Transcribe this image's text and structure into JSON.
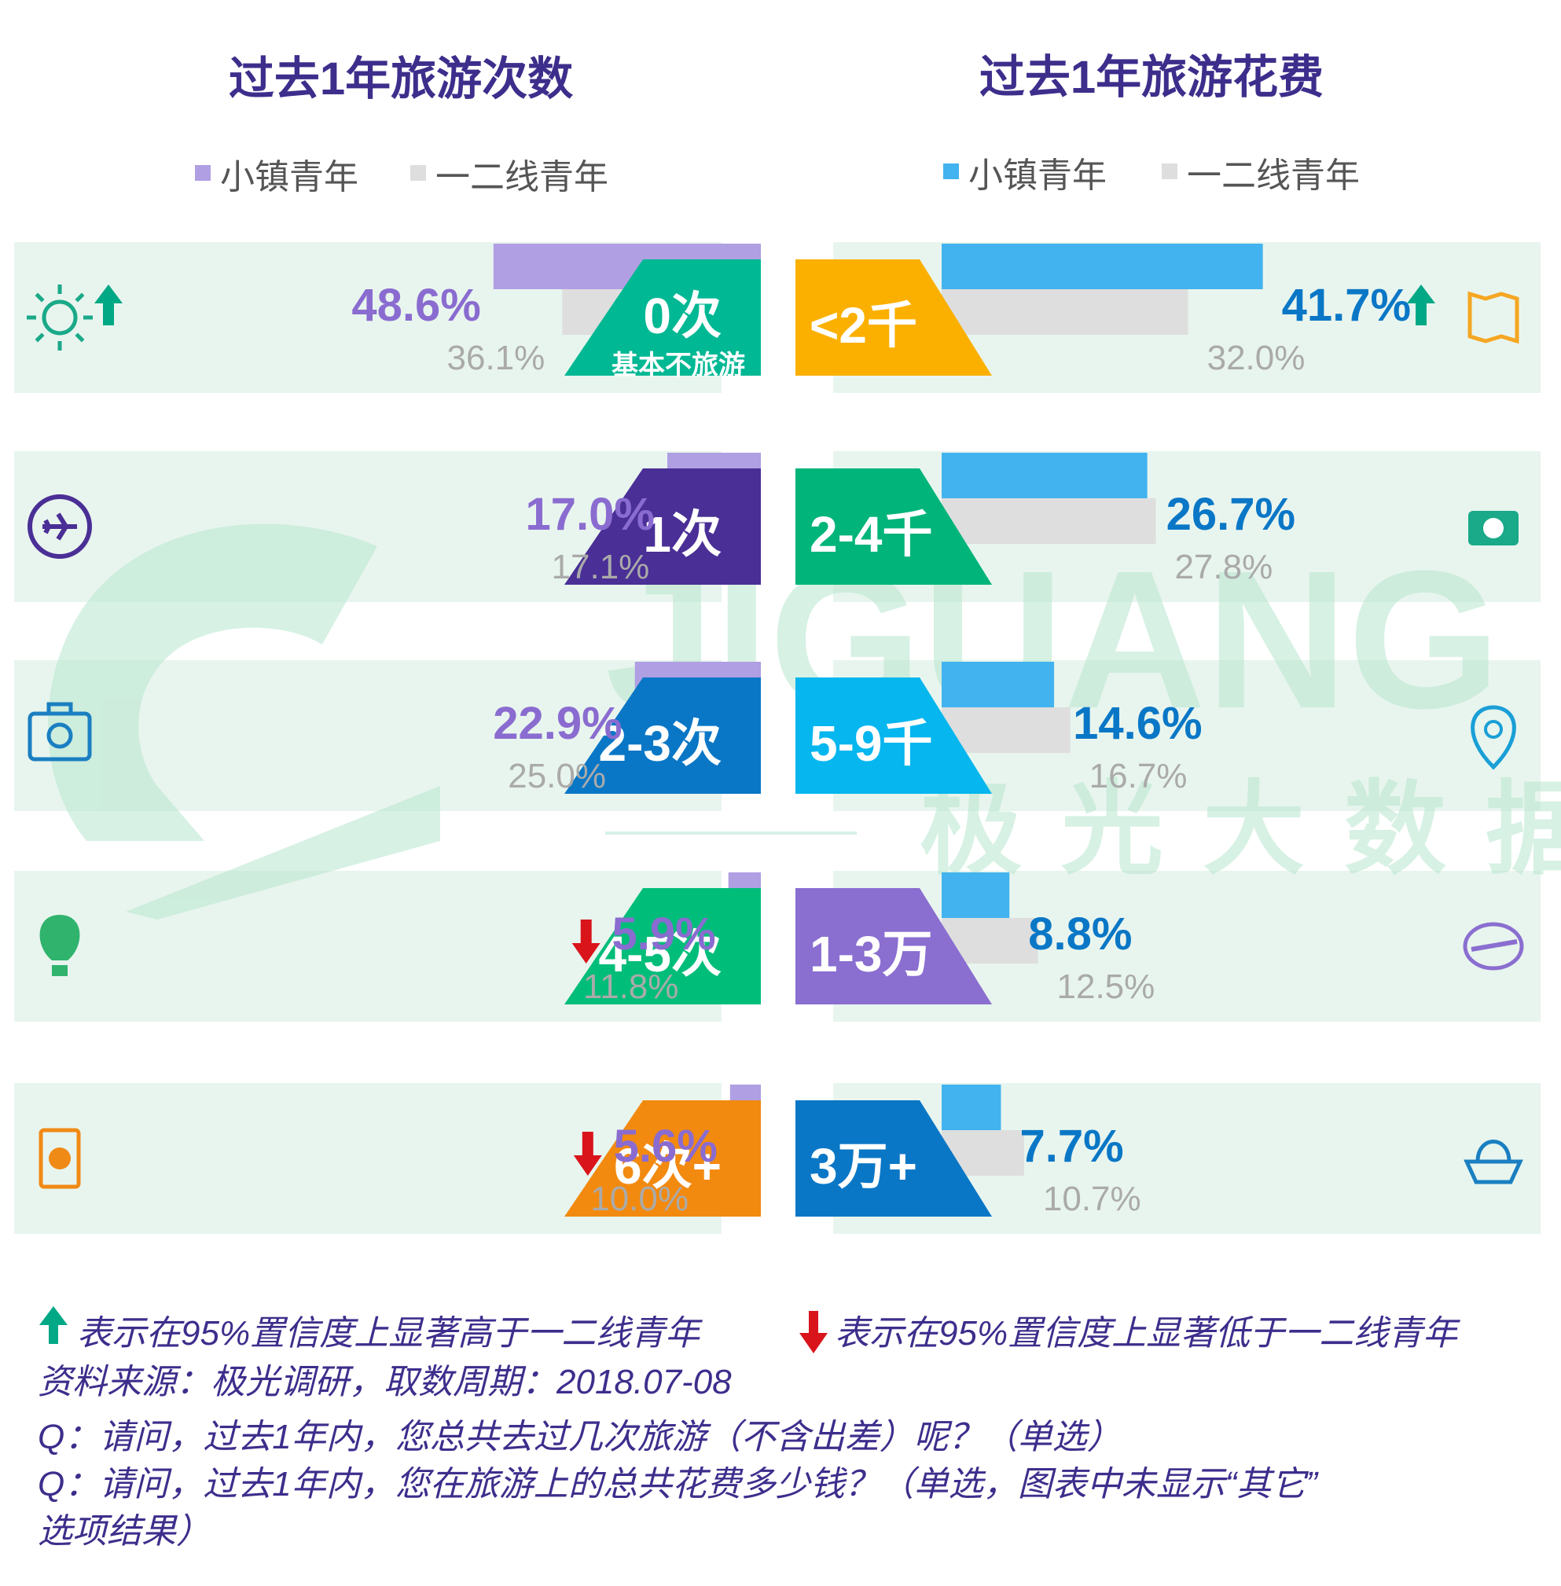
{
  "chart_data": [
    {
      "type": "bar",
      "orientation": "horizontal",
      "title": "过去1年旅游次数",
      "legend": [
        "小镇青年",
        "一二线青年"
      ],
      "categories": [
        "0次",
        "1次",
        "2-3次",
        "4-5次",
        "6次+"
      ],
      "category_sublabels": [
        "基本不旅游",
        "",
        "",
        "",
        ""
      ],
      "series": [
        {
          "name": "小镇青年",
          "values": [
            48.6,
            17.0,
            22.9,
            5.9,
            5.6
          ],
          "labels": [
            "48.6%",
            "17.0%",
            "22.9%",
            "5.9%",
            "5.6%"
          ]
        },
        {
          "name": "一二线青年",
          "values": [
            36.1,
            17.1,
            25.0,
            11.8,
            10.0
          ],
          "labels": [
            "36.1%",
            "17.1%",
            "25.0%",
            "11.8%",
            "10.0%"
          ]
        }
      ],
      "significance": [
        "up",
        "none",
        "none",
        "down",
        "down"
      ],
      "category_colors": [
        "#00b894",
        "#4a2f96",
        "#0a77c6",
        "#00bd7a",
        "#f28a10"
      ],
      "icons": [
        "sun-icon",
        "airplane-icon",
        "luggage-icon",
        "balloon-icon",
        "passport-icon"
      ]
    },
    {
      "type": "bar",
      "orientation": "horizontal",
      "title": "过去1年旅游花费",
      "legend": [
        "小镇青年",
        "一二线青年"
      ],
      "categories": [
        "<2千",
        "2-4千",
        "5-9千",
        "1-3万",
        "3万+"
      ],
      "series": [
        {
          "name": "小镇青年",
          "values": [
            41.7,
            26.7,
            14.6,
            8.8,
            7.7
          ],
          "labels": [
            "41.7%",
            "26.7%",
            "14.6%",
            "8.8%",
            "7.7%"
          ]
        },
        {
          "name": "一二线青年",
          "values": [
            32.0,
            27.8,
            16.7,
            12.5,
            10.7
          ],
          "labels": [
            "32.0%",
            "27.8%",
            "16.7%",
            "12.5%",
            "10.7%"
          ]
        }
      ],
      "significance": [
        "up",
        "none",
        "none",
        "none",
        "none"
      ],
      "category_colors": [
        "#fbb000",
        "#00b47a",
        "#06b6ee",
        "#8a6ed0",
        "#0a77c6"
      ],
      "icons": [
        "map-icon",
        "camera-icon",
        "location-pin-icon",
        "globe-plane-icon",
        "ship-icon"
      ]
    }
  ],
  "colors": {
    "title": "#3d2e8c",
    "town_left": "#b09fe3",
    "town_right": "#42b3ef",
    "city": "#dedede",
    "row_bg": "#e8f5ee",
    "up": "#00a885",
    "down": "#d9141b",
    "left_value_text": "#8a6cd0",
    "right_value_text": "#0a77c6"
  },
  "watermark": {
    "brand": "JIGUANG",
    "brand_cn": "极光大数据"
  },
  "footer": {
    "up_note": "表示在95%置信度上显著高于一二线青年",
    "down_note": "表示在95%置信度上显著低于一二线青年",
    "source": "资料来源：极光调研，取数周期：2018.07-08",
    "q1": "Q：请问，过去1年内，您总共去过几次旅游（不含出差）呢？（单选）",
    "q2_line1": "Q：请问，过去1年内，您在旅游上的总共花费多少钱？（单选，图表中未显示“其它”",
    "q2_line2": "选项结果）"
  }
}
